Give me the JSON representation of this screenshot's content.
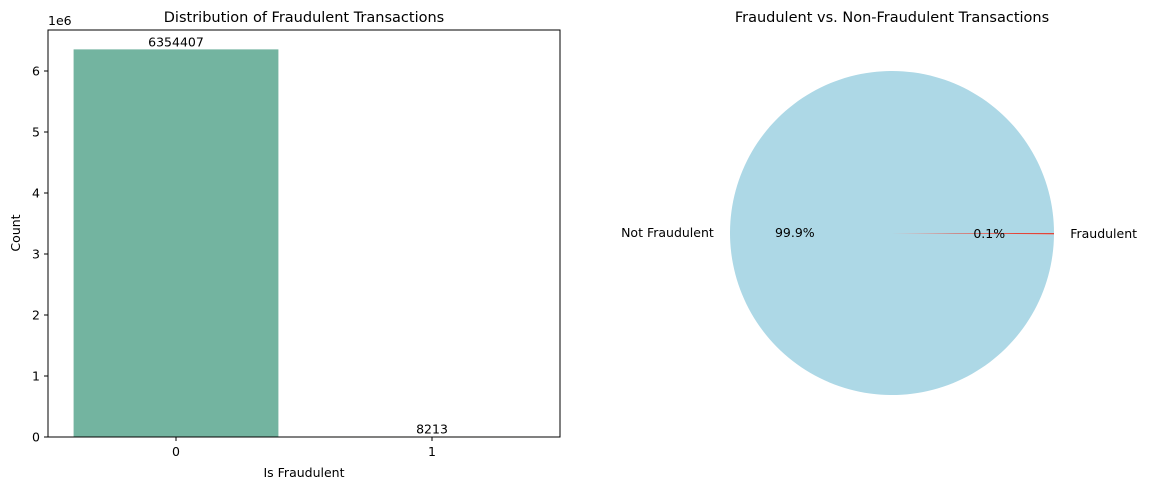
{
  "chart_data": [
    {
      "type": "bar",
      "title": "Distribution of Fraudulent Transactions",
      "xlabel": "Is Fraudulent",
      "ylabel": "Count",
      "y_offset_label": "1e6",
      "categories": [
        "0",
        "1"
      ],
      "values": [
        6354407,
        8213
      ],
      "data_labels": [
        "6354407",
        "8213"
      ],
      "yticks": [
        0,
        1,
        2,
        3,
        4,
        5,
        6
      ],
      "ytick_labels": [
        "0",
        "1",
        "2",
        "3",
        "4",
        "5",
        "6"
      ],
      "ylim": [
        0,
        6672127
      ],
      "grid": false,
      "colors": [
        "#73b4a0",
        "#e8896a"
      ]
    },
    {
      "type": "pie",
      "title": "Fraudulent vs. Non-Fraudulent Transactions",
      "labels": [
        "Not Fraudulent",
        "Fraudulent"
      ],
      "values": [
        6354407,
        8213
      ],
      "pct_labels": [
        "99.9%",
        "0.1%"
      ],
      "colors": [
        "#add8e6",
        "#e2463a"
      ]
    }
  ]
}
